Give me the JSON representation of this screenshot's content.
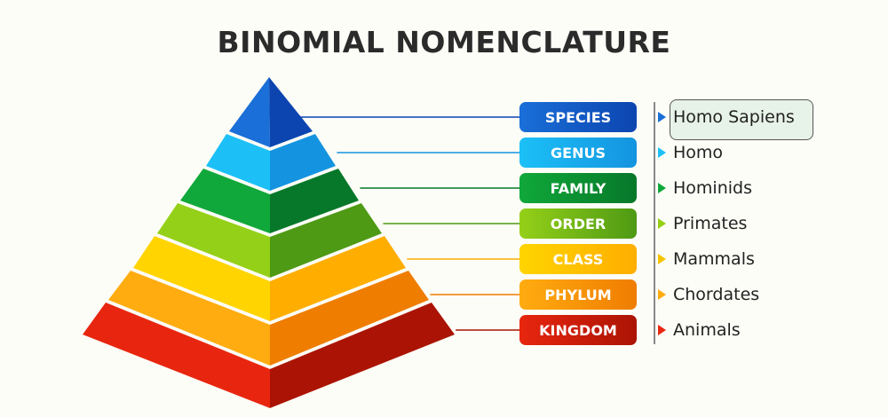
{
  "title": "BINOMIAL NOMENCLATURE",
  "levels": [
    {
      "rank": "SPECIES",
      "example": "Homo Sapiens",
      "color": "#1a6fd8",
      "dark": "#0c45b0",
      "highlighted": true
    },
    {
      "rank": "GENUS",
      "example": "Homo",
      "color": "#1cc0f7",
      "dark": "#1494e0"
    },
    {
      "rank": "FAMILY",
      "example": "Hominids",
      "color": "#10a83a",
      "dark": "#07782a"
    },
    {
      "rank": "ORDER",
      "example": "Primates",
      "color": "#95d018",
      "dark": "#4e9a14"
    },
    {
      "rank": "CLASS",
      "example": "Mammals",
      "color": "#ffd400",
      "dark": "#ffae00"
    },
    {
      "rank": "PHYLUM",
      "example": "Chordates",
      "color": "#ffac10",
      "dark": "#ef7d00"
    },
    {
      "rank": "KINGDOM",
      "example": "Animals",
      "color": "#e8260f",
      "dark": "#ab1404"
    }
  ]
}
